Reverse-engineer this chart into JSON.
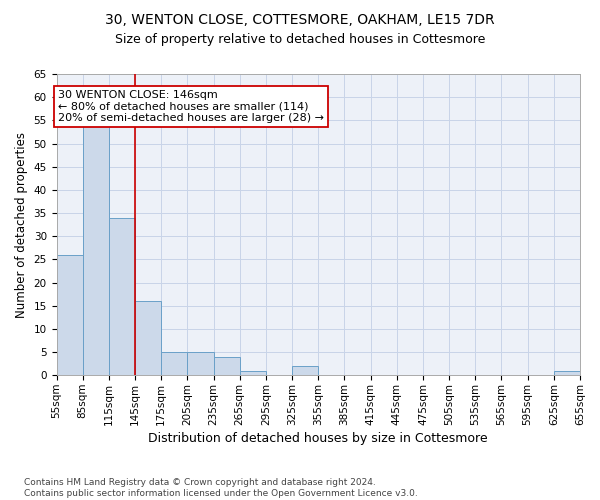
{
  "title_line1": "30, WENTON CLOSE, COTTESMORE, OAKHAM, LE15 7DR",
  "title_line2": "Size of property relative to detached houses in Cottesmore",
  "xlabel": "Distribution of detached houses by size in Cottesmore",
  "ylabel": "Number of detached properties",
  "footnote": "Contains HM Land Registry data © Crown copyright and database right 2024.\nContains public sector information licensed under the Open Government Licence v3.0.",
  "bin_edges": [
    55,
    85,
    115,
    145,
    175,
    205,
    235,
    265,
    295,
    325,
    355,
    385,
    415,
    445,
    475,
    505,
    535,
    565,
    595,
    625,
    655
  ],
  "bar_heights": [
    26,
    54,
    34,
    16,
    5,
    5,
    4,
    1,
    0,
    2,
    0,
    0,
    0,
    0,
    0,
    0,
    0,
    0,
    0,
    1
  ],
  "bar_color": "#ccd9ea",
  "bar_edgecolor": "#6aa0c8",
  "vline_x": 145,
  "vline_color": "#cc0000",
  "annotation_text": "30 WENTON CLOSE: 146sqm\n← 80% of detached houses are smaller (114)\n20% of semi-detached houses are larger (28) →",
  "annotation_box_color": "#ffffff",
  "annotation_box_edgecolor": "#cc0000",
  "ylim": [
    0,
    65
  ],
  "yticks": [
    0,
    5,
    10,
    15,
    20,
    25,
    30,
    35,
    40,
    45,
    50,
    55,
    60,
    65
  ],
  "grid_color": "#c8d4e8",
  "bg_color": "#edf1f8",
  "title_fontsize": 10,
  "subtitle_fontsize": 9,
  "axis_label_fontsize": 8.5,
  "tick_fontsize": 7.5,
  "annotation_fontsize": 8,
  "footnote_fontsize": 6.5
}
